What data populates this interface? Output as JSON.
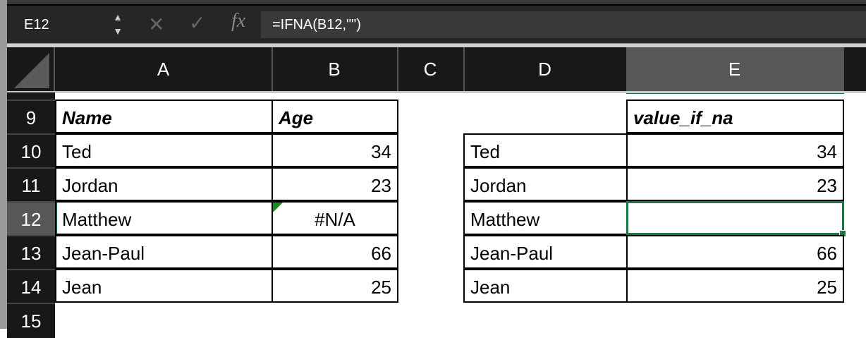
{
  "formula_bar": {
    "name_box": "E12",
    "cancel_icon": "x-icon",
    "enter_icon": "check-icon",
    "fx_label": "fx",
    "formula": "=IFNA(B12,\"\")"
  },
  "columns": [
    "A",
    "B",
    "C",
    "D",
    "E"
  ],
  "selected_column": "E",
  "rows": [
    "9",
    "10",
    "11",
    "12",
    "13",
    "14",
    "15"
  ],
  "selected_row": "12",
  "accent_color": "#217346",
  "table1": {
    "headers": [
      "Name",
      "Age"
    ],
    "rows": [
      [
        "Ted",
        "34"
      ],
      [
        "Jordan",
        "23"
      ],
      [
        "Matthew",
        "#N/A"
      ],
      [
        "Jean-Paul",
        "66"
      ],
      [
        "Jean",
        "25"
      ]
    ]
  },
  "table2": {
    "header": "value_if_na",
    "rows": [
      [
        "Ted",
        "34"
      ],
      [
        "Jordan",
        "23"
      ],
      [
        "Matthew",
        ""
      ],
      [
        "Jean-Paul",
        "66"
      ],
      [
        "Jean",
        "25"
      ]
    ]
  }
}
